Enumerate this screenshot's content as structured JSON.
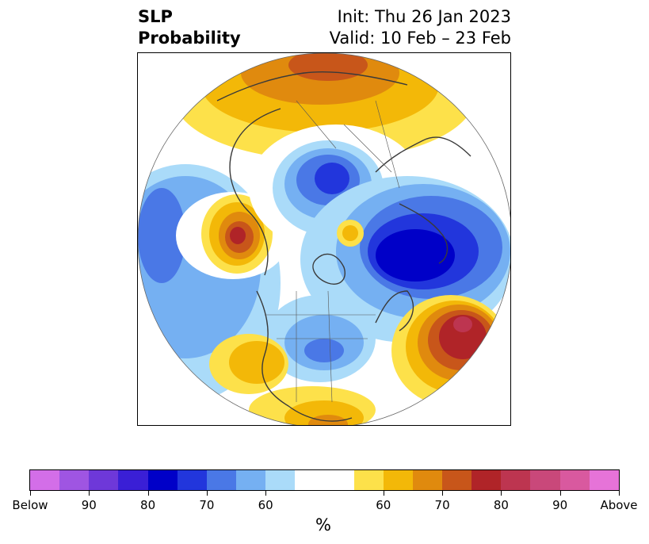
{
  "title": {
    "left_line1": "SLP",
    "left_line2": "Probability",
    "right_line1": "Init: Thu 26 Jan 2023",
    "right_line2": "Valid: 10 Feb – 23 Feb"
  },
  "map": {
    "projection": "north-polar-stereographic",
    "feature_colors": {
      "coastline": "#3a3a3a",
      "borders": "#555555"
    }
  },
  "colorbar": {
    "units_label": "%",
    "colors": [
      "#d36ee8",
      "#9f55e2",
      "#6e38d9",
      "#3a1fd6",
      "#0000c8",
      "#2236dc",
      "#4a78e6",
      "#75b0f2",
      "#aadbf9",
      "#ffffff",
      "#ffffff",
      "#fde14a",
      "#f3b808",
      "#e08a0e",
      "#c8561a",
      "#b02428",
      "#bd3550",
      "#c9487a",
      "#d9599f",
      "#e673d8"
    ],
    "tick_labels": [
      "Below",
      "90",
      "80",
      "70",
      "60",
      "60",
      "70",
      "80",
      "90",
      "Above"
    ]
  }
}
